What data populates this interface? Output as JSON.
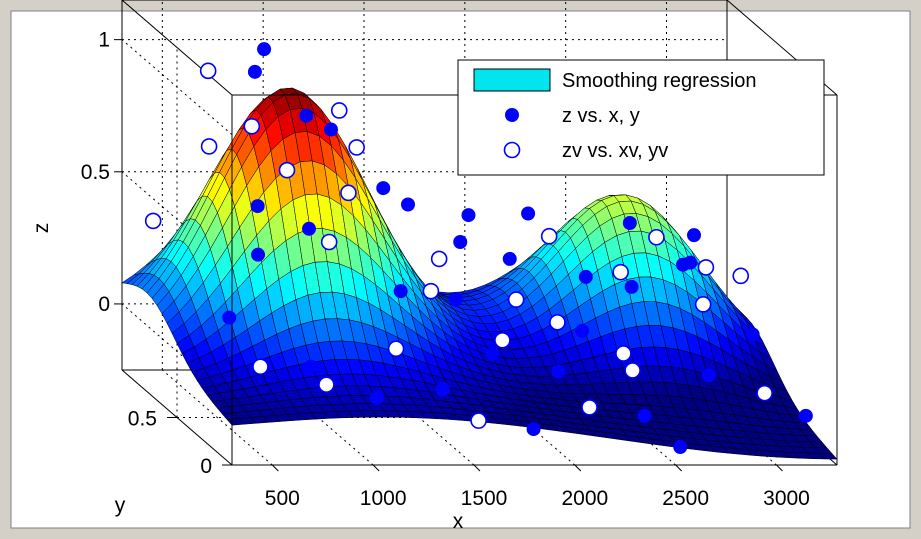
{
  "chart_data": {
    "type": "surface3d",
    "xlabel": "x",
    "ylabel": "y",
    "zlabel": "z",
    "x_ticks": [
      "500",
      "1000",
      "1500",
      "2000",
      "2500",
      "3000"
    ],
    "x_tick_values": [
      500,
      1000,
      1500,
      2000,
      2500,
      3000
    ],
    "y_ticks": [
      "0",
      "0.5"
    ],
    "y_tick_values": [
      0,
      0.5
    ],
    "z_ticks": [
      "0",
      "0.5",
      "1"
    ],
    "z_tick_values": [
      0,
      0.5,
      1
    ],
    "xlim": [
      300,
      3300
    ],
    "ylim": [
      0,
      1
    ],
    "zlim": [
      -0.25,
      1.15
    ],
    "grid": true,
    "legend_position": "top-right",
    "legend": [
      {
        "label": "Smoothing regression",
        "marker": "surface",
        "color": "#00e5ee"
      },
      {
        "label": "z vs. x, y",
        "marker": "filled-circle",
        "color": "#0000ff"
      },
      {
        "label": "zv vs. xv, yv",
        "marker": "open-circle",
        "color": "#0000ff"
      }
    ],
    "surface": {
      "colormap": "jet",
      "x_range": [
        300,
        3300
      ],
      "y_range": [
        0,
        1
      ],
      "description_peaks": [
        {
          "x": 1000,
          "y": 0.75,
          "z": 0.85
        },
        {
          "x": 2700,
          "y": 0.8,
          "z": 0.55
        }
      ]
    },
    "series": [
      {
        "name": "z vs. x, y",
        "marker": "filled",
        "points": [
          [
            620,
            0.35,
            0.42
          ],
          [
            700,
            0.5,
            0.55
          ],
          [
            850,
            0.8,
            0.95
          ],
          [
            950,
            0.9,
            1.0
          ],
          [
            1050,
            0.7,
            0.82
          ],
          [
            1200,
            0.75,
            0.75
          ],
          [
            1350,
            0.55,
            0.6
          ],
          [
            1500,
            0.6,
            0.52
          ],
          [
            1650,
            0.4,
            0.45
          ],
          [
            1800,
            0.6,
            0.48
          ],
          [
            1950,
            0.5,
            0.35
          ],
          [
            2150,
            0.7,
            0.45
          ],
          [
            2300,
            0.45,
            0.3
          ],
          [
            2500,
            0.4,
            0.28
          ],
          [
            2700,
            0.3,
            0.4
          ],
          [
            2900,
            0.6,
            0.3
          ],
          [
            3100,
            0.4,
            0.1
          ],
          [
            450,
            0.3,
            0.2
          ],
          [
            800,
            0.2,
            0.05
          ],
          [
            1100,
            0.15,
            -0.05
          ],
          [
            1400,
            0.1,
            0.0
          ],
          [
            1700,
            0.2,
            0.1
          ],
          [
            2000,
            0.15,
            0.05
          ],
          [
            2400,
            0.1,
            -0.1
          ],
          [
            2800,
            0.25,
            0.0
          ],
          [
            3200,
            0.1,
            -0.1
          ],
          [
            900,
            0.4,
            0.5
          ],
          [
            1300,
            0.3,
            0.3
          ],
          [
            1600,
            0.35,
            0.25
          ],
          [
            2200,
            0.3,
            0.15
          ],
          [
            2600,
            0.6,
            0.45
          ],
          [
            3000,
            0.75,
            0.35
          ],
          [
            1850,
            0.1,
            -0.15
          ],
          [
            2550,
            0.05,
            -0.2
          ]
        ]
      },
      {
        "name": "zv vs. xv, yv",
        "marker": "open",
        "points": [
          [
            400,
            0.9,
            0.35
          ],
          [
            650,
            0.85,
            0.65
          ],
          [
            780,
            0.7,
            0.78
          ],
          [
            900,
            0.6,
            0.65
          ],
          [
            1000,
            0.4,
            0.45
          ],
          [
            1150,
            0.5,
            0.6
          ],
          [
            1300,
            0.7,
            0.7
          ],
          [
            1450,
            0.3,
            0.3
          ],
          [
            1600,
            0.5,
            0.35
          ],
          [
            1750,
            0.2,
            0.15
          ],
          [
            1900,
            0.35,
            0.25
          ],
          [
            2050,
            0.25,
            0.2
          ],
          [
            2200,
            0.6,
            0.4
          ],
          [
            2350,
            0.2,
            0.1
          ],
          [
            2500,
            0.5,
            0.3
          ],
          [
            2650,
            0.45,
            0.45
          ],
          [
            2800,
            0.3,
            0.25
          ],
          [
            2950,
            0.55,
            0.3
          ],
          [
            3150,
            0.6,
            0.25
          ],
          [
            550,
            0.2,
            0.05
          ],
          [
            850,
            0.15,
            0.0
          ],
          [
            1250,
            0.25,
            0.1
          ],
          [
            1550,
            0.05,
            -0.1
          ],
          [
            2100,
            0.05,
            -0.05
          ],
          [
            2450,
            0.3,
            0.0
          ],
          [
            3050,
            0.2,
            -0.05
          ],
          [
            700,
            0.95,
            0.9
          ],
          [
            1350,
            0.95,
            0.75
          ]
        ]
      }
    ]
  }
}
